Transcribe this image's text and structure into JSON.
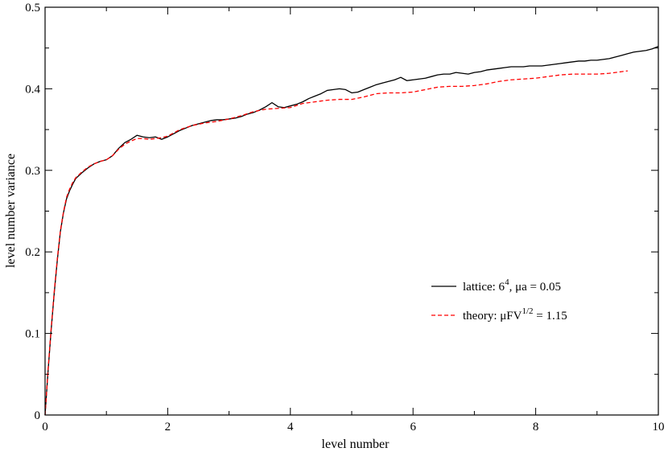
{
  "chart_data": {
    "type": "line",
    "title": "",
    "xlabel": "level number",
    "ylabel": "level number variance",
    "xlim": [
      0,
      10
    ],
    "ylim": [
      0,
      0.5
    ],
    "xticks": [
      0,
      2,
      4,
      6,
      8,
      10
    ],
    "xtick_labels": [
      "0",
      "2",
      "4",
      "6",
      "8",
      "10"
    ],
    "yticks": [
      0,
      0.1,
      0.2,
      0.3,
      0.4,
      0.5
    ],
    "ytick_labels": [
      "0",
      "0.1",
      "0.2",
      "0.3",
      "0.4",
      "0.5"
    ],
    "minor_x_step": 1,
    "minor_y_step": 0.05,
    "grid": false,
    "legend_position": "right-center",
    "series": [
      {
        "name": "lattice: 6^4, μa = 0.05",
        "legend_parts": {
          "prefix": "lattice: 6",
          "sup": "4",
          "suffix": ", μa = 0.05"
        },
        "color": "#000000",
        "dash": "solid",
        "x": [
          0,
          0.05,
          0.1,
          0.15,
          0.2,
          0.25,
          0.3,
          0.35,
          0.4,
          0.45,
          0.5,
          0.6,
          0.7,
          0.8,
          0.9,
          1.0,
          1.1,
          1.2,
          1.3,
          1.4,
          1.5,
          1.6,
          1.7,
          1.8,
          1.9,
          2.0,
          2.1,
          2.2,
          2.3,
          2.4,
          2.5,
          2.6,
          2.7,
          2.8,
          2.9,
          3.0,
          3.1,
          3.2,
          3.3,
          3.4,
          3.5,
          3.6,
          3.7,
          3.8,
          3.9,
          4.0,
          4.1,
          4.2,
          4.3,
          4.4,
          4.5,
          4.6,
          4.7,
          4.8,
          4.9,
          5.0,
          5.1,
          5.2,
          5.3,
          5.4,
          5.5,
          5.6,
          5.7,
          5.8,
          5.9,
          6.0,
          6.1,
          6.2,
          6.3,
          6.4,
          6.5,
          6.6,
          6.7,
          6.8,
          6.9,
          7.0,
          7.1,
          7.2,
          7.3,
          7.4,
          7.5,
          7.6,
          7.7,
          7.8,
          7.9,
          8.0,
          8.1,
          8.2,
          8.3,
          8.4,
          8.5,
          8.6,
          8.7,
          8.8,
          8.9,
          9.0,
          9.1,
          9.2,
          9.3,
          9.4,
          9.5,
          9.6,
          9.7,
          9.8,
          9.9,
          10.0
        ],
        "y": [
          0.0,
          0.055,
          0.105,
          0.15,
          0.19,
          0.225,
          0.248,
          0.265,
          0.275,
          0.283,
          0.29,
          0.297,
          0.303,
          0.308,
          0.311,
          0.313,
          0.318,
          0.327,
          0.334,
          0.338,
          0.343,
          0.341,
          0.34,
          0.341,
          0.338,
          0.341,
          0.345,
          0.349,
          0.352,
          0.355,
          0.357,
          0.359,
          0.361,
          0.362,
          0.362,
          0.363,
          0.364,
          0.366,
          0.369,
          0.371,
          0.374,
          0.378,
          0.383,
          0.378,
          0.377,
          0.379,
          0.381,
          0.384,
          0.388,
          0.391,
          0.394,
          0.398,
          0.399,
          0.4,
          0.399,
          0.395,
          0.396,
          0.399,
          0.402,
          0.405,
          0.407,
          0.409,
          0.411,
          0.414,
          0.41,
          0.411,
          0.412,
          0.413,
          0.415,
          0.417,
          0.418,
          0.418,
          0.42,
          0.419,
          0.418,
          0.42,
          0.421,
          0.423,
          0.424,
          0.425,
          0.426,
          0.427,
          0.427,
          0.427,
          0.428,
          0.428,
          0.428,
          0.429,
          0.43,
          0.431,
          0.432,
          0.433,
          0.434,
          0.434,
          0.435,
          0.435,
          0.436,
          0.437,
          0.439,
          0.441,
          0.443,
          0.445,
          0.446,
          0.447,
          0.449,
          0.452
        ]
      },
      {
        "name": "theory: μFV^1/2 = 1.15",
        "legend_parts": {
          "prefix": "theory: μFV",
          "sup": "1/2",
          "suffix": " = 1.15"
        },
        "color": "#ff0000",
        "dash": "dashed",
        "x": [
          0,
          0.05,
          0.1,
          0.15,
          0.2,
          0.25,
          0.3,
          0.35,
          0.4,
          0.45,
          0.5,
          0.6,
          0.7,
          0.8,
          0.9,
          1.0,
          1.1,
          1.2,
          1.3,
          1.4,
          1.5,
          1.6,
          1.7,
          1.8,
          1.9,
          2.0,
          2.2,
          2.4,
          2.6,
          2.8,
          3.0,
          3.2,
          3.4,
          3.6,
          3.8,
          4.0,
          4.2,
          4.4,
          4.6,
          4.8,
          5.0,
          5.2,
          5.4,
          5.6,
          5.8,
          6.0,
          6.2,
          6.4,
          6.6,
          6.8,
          7.0,
          7.2,
          7.4,
          7.6,
          7.8,
          8.0,
          8.2,
          8.4,
          8.6,
          8.8,
          9.0,
          9.2,
          9.4,
          9.5
        ],
        "y": [
          0.0,
          0.057,
          0.107,
          0.152,
          0.192,
          0.226,
          0.249,
          0.267,
          0.277,
          0.285,
          0.291,
          0.298,
          0.304,
          0.308,
          0.311,
          0.313,
          0.318,
          0.326,
          0.332,
          0.336,
          0.339,
          0.339,
          0.338,
          0.339,
          0.34,
          0.342,
          0.35,
          0.355,
          0.358,
          0.36,
          0.363,
          0.367,
          0.372,
          0.375,
          0.376,
          0.377,
          0.382,
          0.384,
          0.386,
          0.387,
          0.387,
          0.39,
          0.394,
          0.395,
          0.395,
          0.396,
          0.399,
          0.402,
          0.403,
          0.403,
          0.404,
          0.406,
          0.409,
          0.411,
          0.412,
          0.413,
          0.415,
          0.417,
          0.418,
          0.418,
          0.418,
          0.419,
          0.421,
          0.422
        ]
      }
    ]
  }
}
